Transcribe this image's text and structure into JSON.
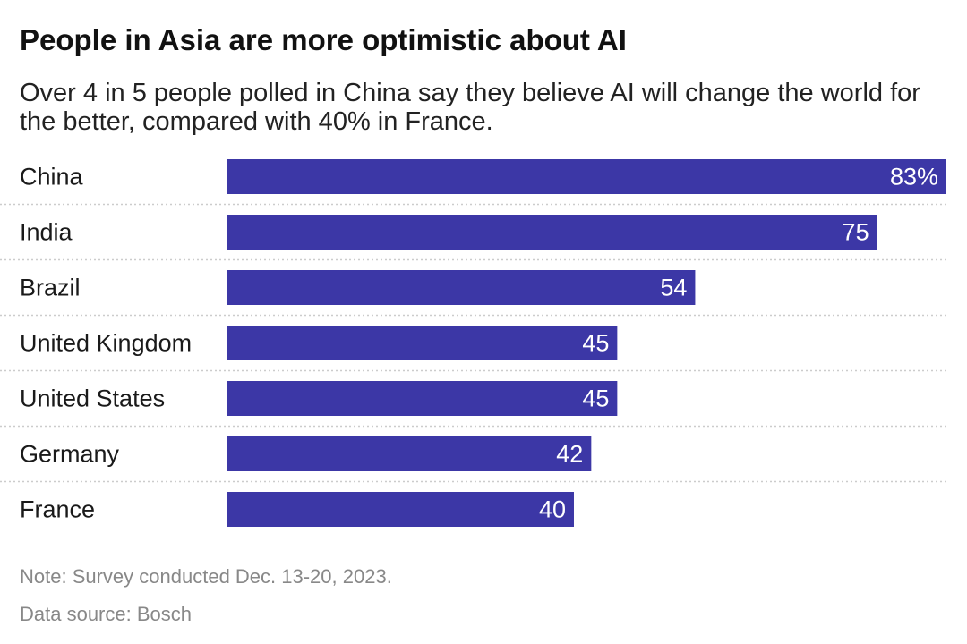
{
  "title": "People in Asia are more optimistic about AI",
  "subtitle": "Over 4 in 5 people polled in China say they believe AI will change the world for the better, compared with 40% in France.",
  "note": "Note: Survey conducted Dec. 13-20, 2023.",
  "source": "Data source: Bosch",
  "colors": {
    "bar": "#3c37a6",
    "label": "#ffffff",
    "grid": "#cccccc"
  },
  "chart_data": {
    "type": "bar",
    "orientation": "horizontal",
    "title": "People in Asia are more optimistic about AI",
    "categories": [
      "China",
      "India",
      "Brazil",
      "United Kingdom",
      "United States",
      "Germany",
      "France"
    ],
    "values": [
      83,
      75,
      54,
      45,
      45,
      42,
      40
    ],
    "data_labels": [
      "83%",
      "75",
      "54",
      "45",
      "45",
      "42",
      "40"
    ],
    "xlim": [
      0,
      83
    ],
    "unit": "%"
  }
}
